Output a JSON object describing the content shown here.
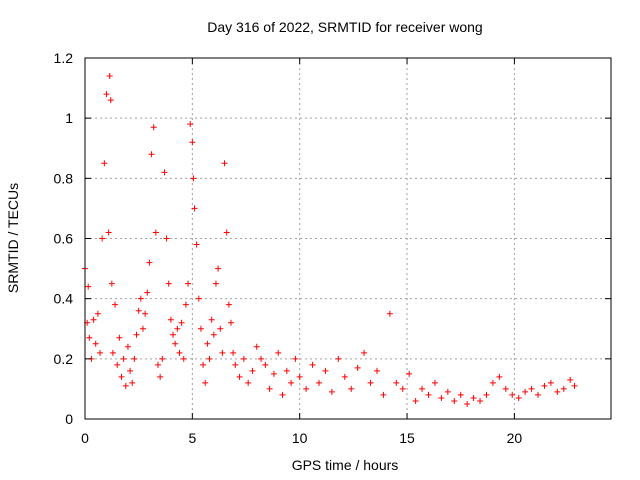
{
  "chart_data": {
    "type": "scatter",
    "title": "Day 316 of 2022, SRMTID for receiver wong",
    "xlabel": "GPS time / hours",
    "ylabel": "SRMTID / TECUs",
    "xlim": [
      0,
      24.5
    ],
    "ylim": [
      0,
      1.2
    ],
    "xticks": [
      0,
      5,
      10,
      15,
      20
    ],
    "xtick_labels": [
      "0",
      "5",
      "10",
      "15",
      "20"
    ],
    "yticks": [
      0,
      0.2,
      0.4,
      0.6,
      0.8,
      1.0,
      1.2
    ],
    "ytick_labels": [
      "0",
      "0.2",
      "0.4",
      "0.6",
      "0.8",
      "1",
      "1.2"
    ],
    "grid": true,
    "marker": "+",
    "series": [
      {
        "name": "SRMTID",
        "color": "#ff0000",
        "x": [
          0.0,
          0.1,
          0.15,
          0.2,
          0.3,
          0.4,
          0.5,
          0.6,
          0.7,
          0.8,
          0.9,
          1.0,
          1.1,
          1.15,
          1.2,
          1.25,
          1.3,
          1.4,
          1.5,
          1.6,
          1.7,
          1.8,
          1.9,
          2.0,
          2.1,
          2.2,
          2.3,
          2.4,
          2.5,
          2.6,
          2.7,
          2.8,
          2.9,
          3.0,
          3.1,
          3.2,
          3.3,
          3.4,
          3.5,
          3.6,
          3.7,
          3.8,
          3.9,
          4.0,
          4.1,
          4.2,
          4.3,
          4.4,
          4.5,
          4.6,
          4.7,
          4.8,
          4.9,
          5.0,
          5.05,
          5.1,
          5.2,
          5.3,
          5.4,
          5.5,
          5.6,
          5.7,
          5.8,
          5.9,
          6.0,
          6.1,
          6.2,
          6.3,
          6.4,
          6.5,
          6.6,
          6.7,
          6.8,
          6.9,
          7.0,
          7.2,
          7.4,
          7.6,
          7.8,
          8.0,
          8.2,
          8.4,
          8.6,
          8.8,
          9.0,
          9.2,
          9.4,
          9.6,
          9.8,
          10.0,
          10.3,
          10.6,
          10.9,
          11.2,
          11.5,
          11.8,
          12.1,
          12.4,
          12.7,
          13.0,
          13.3,
          13.6,
          13.9,
          14.2,
          14.5,
          14.8,
          15.1,
          15.4,
          15.7,
          16.0,
          16.3,
          16.6,
          16.9,
          17.2,
          17.5,
          17.8,
          18.1,
          18.4,
          18.7,
          19.0,
          19.3,
          19.6,
          19.9,
          20.2,
          20.5,
          20.8,
          21.1,
          21.4,
          21.7,
          22.0,
          22.3,
          22.6,
          22.8
        ],
        "y": [
          0.5,
          0.32,
          0.44,
          0.27,
          0.2,
          0.33,
          0.25,
          0.35,
          0.22,
          0.6,
          0.85,
          1.08,
          0.62,
          1.14,
          1.06,
          0.45,
          0.22,
          0.38,
          0.18,
          0.27,
          0.14,
          0.2,
          0.11,
          0.24,
          0.16,
          0.12,
          0.2,
          0.28,
          0.36,
          0.4,
          0.3,
          0.35,
          0.42,
          0.52,
          0.88,
          0.97,
          0.62,
          0.18,
          0.14,
          0.2,
          0.82,
          0.6,
          0.45,
          0.33,
          0.28,
          0.25,
          0.3,
          0.22,
          0.32,
          0.2,
          0.38,
          0.45,
          0.98,
          0.92,
          0.8,
          0.7,
          0.58,
          0.4,
          0.3,
          0.18,
          0.12,
          0.25,
          0.2,
          0.33,
          0.28,
          0.45,
          0.5,
          0.3,
          0.22,
          0.85,
          0.62,
          0.38,
          0.32,
          0.22,
          0.18,
          0.14,
          0.2,
          0.12,
          0.16,
          0.24,
          0.2,
          0.18,
          0.1,
          0.15,
          0.22,
          0.08,
          0.16,
          0.12,
          0.2,
          0.14,
          0.1,
          0.18,
          0.12,
          0.16,
          0.09,
          0.2,
          0.14,
          0.1,
          0.17,
          0.22,
          0.12,
          0.16,
          0.08,
          0.35,
          0.12,
          0.1,
          0.15,
          0.06,
          0.1,
          0.08,
          0.12,
          0.07,
          0.09,
          0.06,
          0.08,
          0.05,
          0.07,
          0.06,
          0.08,
          0.12,
          0.14,
          0.1,
          0.08,
          0.07,
          0.09,
          0.1,
          0.08,
          0.11,
          0.12,
          0.09,
          0.1,
          0.13,
          0.11
        ]
      }
    ]
  }
}
